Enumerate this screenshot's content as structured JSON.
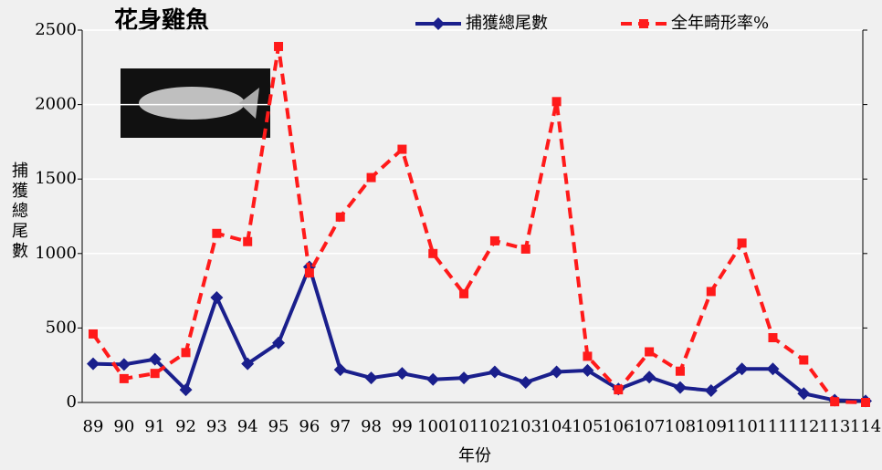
{
  "chart_data": {
    "type": "line",
    "title": "花身雞魚",
    "y_label": "捕獲總尾數",
    "x_label": "年份",
    "categories": [
      "89",
      "90",
      "91",
      "92",
      "93",
      "94",
      "95",
      "96",
      "97",
      "98",
      "99",
      "100",
      "101",
      "102",
      "103",
      "104",
      "105",
      "106",
      "107",
      "108",
      "109",
      "110",
      "111",
      "112",
      "113",
      "114"
    ],
    "series": [
      {
        "name": "捕獲總尾數",
        "color": "#1a1f8c",
        "marker": "diamond",
        "dash": "solid",
        "values": [
          260,
          255,
          290,
          85,
          705,
          260,
          400,
          910,
          220,
          165,
          195,
          155,
          165,
          205,
          135,
          205,
          215,
          90,
          170,
          100,
          80,
          225,
          225,
          60,
          15,
          10
        ]
      },
      {
        "name": "全年畸形率%",
        "color": "#ff1a1a",
        "marker": "square",
        "dash": "dashed",
        "values": [
          460,
          160,
          195,
          335,
          1135,
          1080,
          2390,
          870,
          1245,
          1510,
          1700,
          1000,
          730,
          1085,
          1030,
          2020,
          310,
          85,
          340,
          210,
          745,
          1070,
          435,
          285,
          5,
          0
        ]
      }
    ],
    "ylim": [
      0,
      2500
    ],
    "yticks": [
      0,
      500,
      1000,
      1500,
      2000,
      2500
    ],
    "grid": true
  }
}
